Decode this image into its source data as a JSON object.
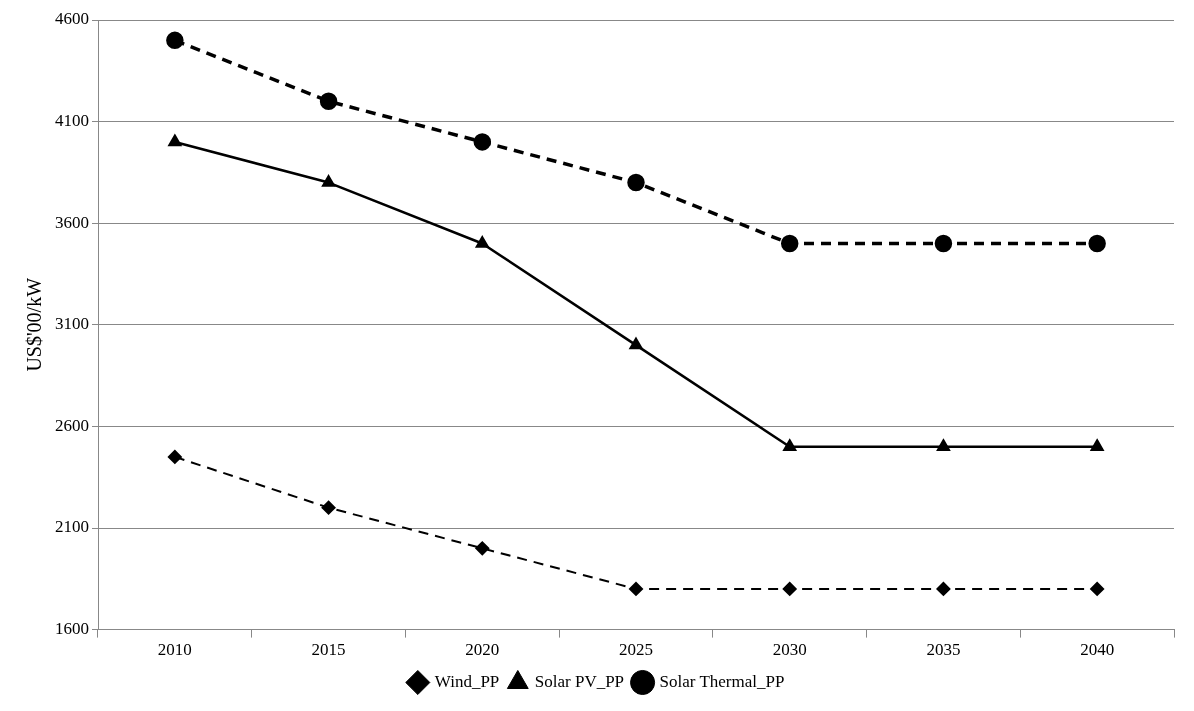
{
  "chart_data": {
    "type": "line",
    "ylabel": "US$'00/kW",
    "categories": [
      "2010",
      "2015",
      "2020",
      "2025",
      "2030",
      "2035",
      "2040"
    ],
    "series": [
      {
        "name": "Wind_PP",
        "color": "#000000",
        "marker": "diamond",
        "line_style": "dashed",
        "values": [
          2450,
          2200,
          2000,
          1800,
          1800,
          1800,
          1800
        ]
      },
      {
        "name": "Solar PV_PP",
        "color": "#000000",
        "marker": "triangle",
        "line_style": "solid",
        "values": [
          4000,
          3800,
          3500,
          3000,
          2500,
          2500,
          2500
        ]
      },
      {
        "name": "Solar Thermal_PP",
        "color": "#000000",
        "marker": "circle",
        "line_style": "dashed",
        "values": [
          4500,
          4200,
          4000,
          3800,
          3500,
          3500,
          3500
        ]
      }
    ],
    "ylim": [
      1600,
      4600
    ],
    "yticks": [
      1600,
      2100,
      2600,
      3100,
      3600,
      4100,
      4600
    ],
    "grid": "y",
    "legend": "bottom"
  }
}
